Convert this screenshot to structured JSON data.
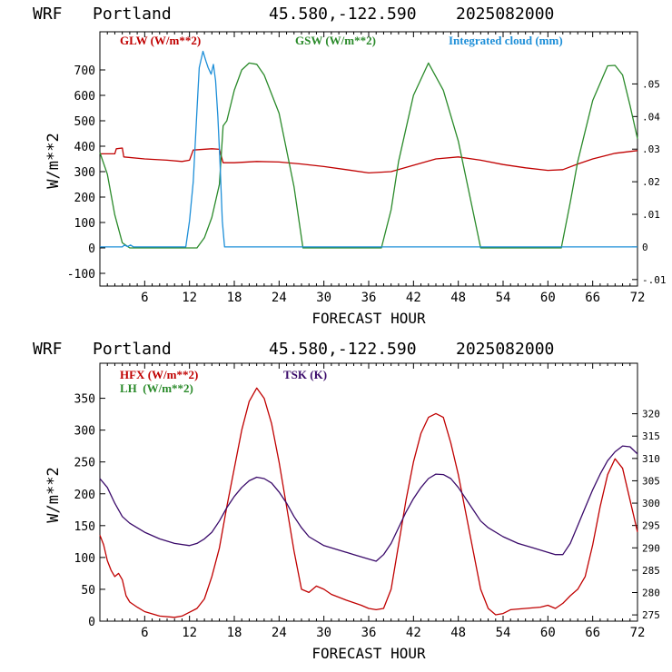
{
  "colors": {
    "glw": "#c00000",
    "gsw": "#2a8a2a",
    "cloud": "#1e8fd8",
    "hfx": "#c00000",
    "lh": "#2a8a2a",
    "tsk": "#3a0a6a",
    "axis": "#000000"
  },
  "chart_data": [
    {
      "type": "line",
      "header": {
        "model": "WRF",
        "location": "Portland",
        "coords": "45.580,-122.590",
        "run": "2025082000"
      },
      "xlabel": "FORECAST HOUR",
      "ylabel": "W/m**2",
      "xlim": [
        0,
        72
      ],
      "ylim": [
        -150,
        850
      ],
      "y2lim": [
        -0.012,
        0.066
      ],
      "xticks": [
        6,
        12,
        18,
        24,
        30,
        36,
        42,
        48,
        54,
        60,
        66,
        72
      ],
      "yticks": [
        -100,
        0,
        100,
        200,
        300,
        400,
        500,
        600,
        700
      ],
      "y2ticks": [
        -0.01,
        0,
        0.01,
        0.02,
        0.03,
        0.04,
        0.05
      ],
      "y2ticklabels": [
        "-.01",
        "0",
        ".01",
        ".02",
        ".03",
        ".04",
        ".05"
      ],
      "legend": [
        {
          "label": "GLW (W/m**2)",
          "series": "glw"
        },
        {
          "label": "GSW (W/m**2)",
          "series": "gsw"
        },
        {
          "label": "Integrated cloud (mm)",
          "series": "cloud"
        }
      ],
      "series": [
        {
          "name": "GLW (W/m**2)",
          "key": "glw",
          "axis": "left",
          "points": [
            [
              0,
              370
            ],
            [
              2,
              370
            ],
            [
              2.2,
              390
            ],
            [
              3,
              393
            ],
            [
              3.2,
              358
            ],
            [
              6,
              350
            ],
            [
              9,
              345
            ],
            [
              11,
              340
            ],
            [
              12,
              345
            ],
            [
              12.5,
              385
            ],
            [
              15,
              390
            ],
            [
              16,
              388
            ],
            [
              16.5,
              335
            ],
            [
              18,
              335
            ],
            [
              21,
              340
            ],
            [
              24,
              338
            ],
            [
              27,
              330
            ],
            [
              30,
              320
            ],
            [
              33,
              308
            ],
            [
              36,
              295
            ],
            [
              39,
              300
            ],
            [
              42,
              325
            ],
            [
              45,
              350
            ],
            [
              48,
              358
            ],
            [
              51,
              345
            ],
            [
              54,
              328
            ],
            [
              57,
              315
            ],
            [
              60,
              305
            ],
            [
              62,
              308
            ],
            [
              64,
              330
            ],
            [
              66,
              350
            ],
            [
              69,
              372
            ],
            [
              72,
              383
            ]
          ]
        },
        {
          "name": "GSW (W/m**2)",
          "key": "gsw",
          "axis": "left",
          "points": [
            [
              0,
              375
            ],
            [
              1,
              290
            ],
            [
              2,
              130
            ],
            [
              3,
              20
            ],
            [
              4,
              0
            ],
            [
              13,
              0
            ],
            [
              14,
              40
            ],
            [
              15,
              120
            ],
            [
              16,
              250
            ],
            [
              16.5,
              480
            ],
            [
              17,
              500
            ],
            [
              18,
              620
            ],
            [
              19,
              700
            ],
            [
              20,
              727
            ],
            [
              21,
              722
            ],
            [
              22,
              680
            ],
            [
              24,
              530
            ],
            [
              26,
              240
            ],
            [
              27.2,
              0
            ],
            [
              37.7,
              0
            ],
            [
              39,
              150
            ],
            [
              40,
              340
            ],
            [
              42,
              600
            ],
            [
              44,
              727
            ],
            [
              46,
              620
            ],
            [
              48,
              420
            ],
            [
              50,
              140
            ],
            [
              51,
              0
            ],
            [
              61.8,
              0
            ],
            [
              63,
              180
            ],
            [
              64,
              340
            ],
            [
              66,
              580
            ],
            [
              68,
              716
            ],
            [
              69,
              718
            ],
            [
              70,
              680
            ],
            [
              71,
              560
            ],
            [
              72,
              430
            ]
          ]
        },
        {
          "name": "Integrated cloud (mm)",
          "key": "cloud",
          "axis": "right",
          "points": [
            [
              0,
              0
            ],
            [
              3,
              0
            ],
            [
              3.3,
              0.0006
            ],
            [
              3.7,
              0.0001
            ],
            [
              4.1,
              0.0006
            ],
            [
              4.5,
              0
            ],
            [
              11.5,
              0
            ],
            [
              12,
              0.008
            ],
            [
              12.5,
              0.02
            ],
            [
              13,
              0.042
            ],
            [
              13.3,
              0.055
            ],
            [
              13.8,
              0.06
            ],
            [
              14.2,
              0.057
            ],
            [
              14.5,
              0.055
            ],
            [
              14.9,
              0.053
            ],
            [
              15.2,
              0.056
            ],
            [
              15.5,
              0.051
            ],
            [
              15.8,
              0.04
            ],
            [
              16.1,
              0.025
            ],
            [
              16.4,
              0.008
            ],
            [
              16.7,
              0
            ],
            [
              72,
              0
            ]
          ]
        }
      ]
    },
    {
      "type": "line",
      "header": {
        "model": "WRF",
        "location": "Portland",
        "coords": "45.580,-122.590",
        "run": "2025082000"
      },
      "xlabel": "FORECAST HOUR",
      "ylabel": "W/m**2",
      "xlim": [
        0,
        72
      ],
      "ylim": [
        0,
        405
      ],
      "y2lim": [
        273.6,
        331.3
      ],
      "xticks": [
        6,
        12,
        18,
        24,
        30,
        36,
        42,
        48,
        54,
        60,
        66,
        72
      ],
      "yticks": [
        0,
        50,
        100,
        150,
        200,
        250,
        300,
        350
      ],
      "y2ticks": [
        275,
        280,
        285,
        290,
        295,
        300,
        305,
        310,
        315,
        320
      ],
      "legend": [
        {
          "label": "HFX (W/m**2)",
          "series": "hfx"
        },
        {
          "label": "LH  (W/m**2)",
          "series": "lh"
        },
        {
          "label": "TSK (K)",
          "series": "tsk"
        }
      ],
      "series": [
        {
          "name": "HFX (W/m**2)",
          "key": "hfx",
          "axis": "left",
          "points": [
            [
              0,
              135
            ],
            [
              0.5,
              120
            ],
            [
              1,
              95
            ],
            [
              1.5,
              80
            ],
            [
              2,
              70
            ],
            [
              2.5,
              75
            ],
            [
              3,
              65
            ],
            [
              3.5,
              40
            ],
            [
              4,
              30
            ],
            [
              5,
              22
            ],
            [
              6,
              15
            ],
            [
              8,
              8
            ],
            [
              10,
              6
            ],
            [
              11,
              8
            ],
            [
              12,
              14
            ],
            [
              13,
              20
            ],
            [
              14,
              35
            ],
            [
              15,
              70
            ],
            [
              16,
              115
            ],
            [
              17,
              180
            ],
            [
              18,
              240
            ],
            [
              19,
              300
            ],
            [
              20,
              345
            ],
            [
              21,
              366
            ],
            [
              22,
              350
            ],
            [
              23,
              310
            ],
            [
              24,
              250
            ],
            [
              25,
              180
            ],
            [
              26,
              110
            ],
            [
              27,
              50
            ],
            [
              28,
              45
            ],
            [
              29,
              55
            ],
            [
              30,
              50
            ],
            [
              31,
              42
            ],
            [
              33,
              33
            ],
            [
              35,
              25
            ],
            [
              36,
              20
            ],
            [
              37,
              18
            ],
            [
              38,
              20
            ],
            [
              39,
              50
            ],
            [
              40,
              120
            ],
            [
              41,
              190
            ],
            [
              42,
              250
            ],
            [
              43,
              295
            ],
            [
              44,
              320
            ],
            [
              45,
              326
            ],
            [
              46,
              320
            ],
            [
              47,
              280
            ],
            [
              48,
              230
            ],
            [
              49,
              170
            ],
            [
              50,
              110
            ],
            [
              51,
              50
            ],
            [
              52,
              20
            ],
            [
              53,
              10
            ],
            [
              54,
              12
            ],
            [
              55,
              18
            ],
            [
              57,
              20
            ],
            [
              59,
              22
            ],
            [
              60,
              25
            ],
            [
              61,
              20
            ],
            [
              62,
              28
            ],
            [
              63,
              40
            ],
            [
              64,
              50
            ],
            [
              65,
              70
            ],
            [
              66,
              120
            ],
            [
              67,
              180
            ],
            [
              68,
              230
            ],
            [
              69,
              255
            ],
            [
              70,
              240
            ],
            [
              71,
              190
            ],
            [
              72,
              140
            ]
          ]
        },
        {
          "name": "LH  (W/m**2)",
          "key": "lh",
          "axis": "left",
          "points": []
        },
        {
          "name": "TSK (K)",
          "key": "tsk",
          "axis": "right",
          "points": [
            [
              0,
              305.5
            ],
            [
              1,
              303.5
            ],
            [
              2,
              300
            ],
            [
              3,
              297
            ],
            [
              4,
              295.5
            ],
            [
              6,
              293.5
            ],
            [
              8,
              292
            ],
            [
              10,
              291
            ],
            [
              12,
              290.5
            ],
            [
              13,
              291
            ],
            [
              14,
              292
            ],
            [
              15,
              293.5
            ],
            [
              16,
              296
            ],
            [
              17,
              299
            ],
            [
              18,
              301.5
            ],
            [
              19,
              303.5
            ],
            [
              20,
              305
            ],
            [
              21,
              305.8
            ],
            [
              22,
              305.5
            ],
            [
              23,
              304.5
            ],
            [
              24,
              302.5
            ],
            [
              25,
              300
            ],
            [
              26,
              297
            ],
            [
              27,
              294.5
            ],
            [
              28,
              292.5
            ],
            [
              30,
              290.5
            ],
            [
              32,
              289.5
            ],
            [
              34,
              288.5
            ],
            [
              36,
              287.5
            ],
            [
              37,
              287
            ],
            [
              38,
              288.5
            ],
            [
              39,
              291
            ],
            [
              40,
              294.5
            ],
            [
              41,
              298
            ],
            [
              42,
              301
            ],
            [
              43,
              303.5
            ],
            [
              44,
              305.5
            ],
            [
              45,
              306.5
            ],
            [
              46,
              306.4
            ],
            [
              47,
              305.5
            ],
            [
              48,
              303.5
            ],
            [
              49,
              301
            ],
            [
              50,
              298.5
            ],
            [
              51,
              296
            ],
            [
              52,
              294.5
            ],
            [
              54,
              292.5
            ],
            [
              56,
              291
            ],
            [
              58,
              290
            ],
            [
              60,
              289
            ],
            [
              61,
              288.5
            ],
            [
              62,
              288.5
            ],
            [
              63,
              291
            ],
            [
              64,
              295
            ],
            [
              65,
              299
            ],
            [
              66,
              303
            ],
            [
              67,
              306.5
            ],
            [
              68,
              309.5
            ],
            [
              69,
              311.5
            ],
            [
              70,
              312.8
            ],
            [
              71,
              312.6
            ],
            [
              72,
              311
            ]
          ]
        }
      ]
    }
  ]
}
